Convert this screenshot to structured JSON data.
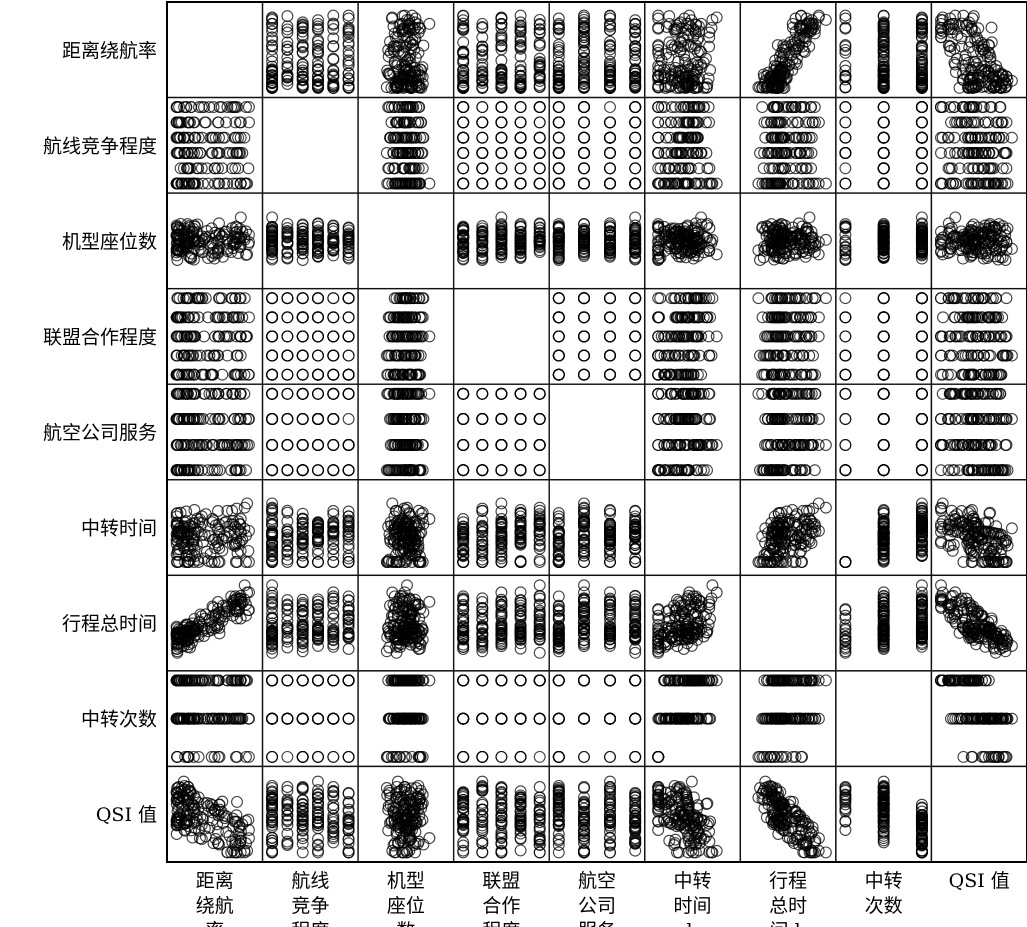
{
  "chart_data": {
    "type": "scatter",
    "title": "",
    "variables": [
      "距离绕航率",
      "航线竞争程度",
      "机型座位数",
      "联盟合作程度",
      "航空公司服务",
      "中转时间",
      "行程总时间",
      "中转次数",
      "QSI 值"
    ],
    "column_labels": [
      [
        "距离",
        "绕航",
        "率"
      ],
      [
        "航线",
        "竞争",
        "程度"
      ],
      [
        "机型",
        "座位",
        "数"
      ],
      [
        "联盟",
        "合作",
        "程度"
      ],
      [
        "航空",
        "公司",
        "服务"
      ],
      [
        "中转",
        "时间",
        "h"
      ],
      [
        "行程",
        "总时",
        "间 h"
      ],
      [
        "中转",
        "次数"
      ],
      [
        "QSI 值"
      ]
    ],
    "variable_levels": {
      "距离绕航率": "continuous",
      "航线竞争程度": [
        0,
        1,
        2,
        3,
        4,
        5
      ],
      "机型座位数": "continuous",
      "联盟合作程度": [
        0,
        1,
        2,
        3,
        4
      ],
      "航空公司服务": [
        1,
        2,
        3,
        4
      ],
      "中转时间": "continuous",
      "行程总时间": "continuous",
      "中转次数": [
        0,
        1,
        2
      ],
      "QSI 值": "continuous"
    },
    "marker": "open-circle",
    "diagonal": "empty",
    "grid": false,
    "legend": "none"
  }
}
